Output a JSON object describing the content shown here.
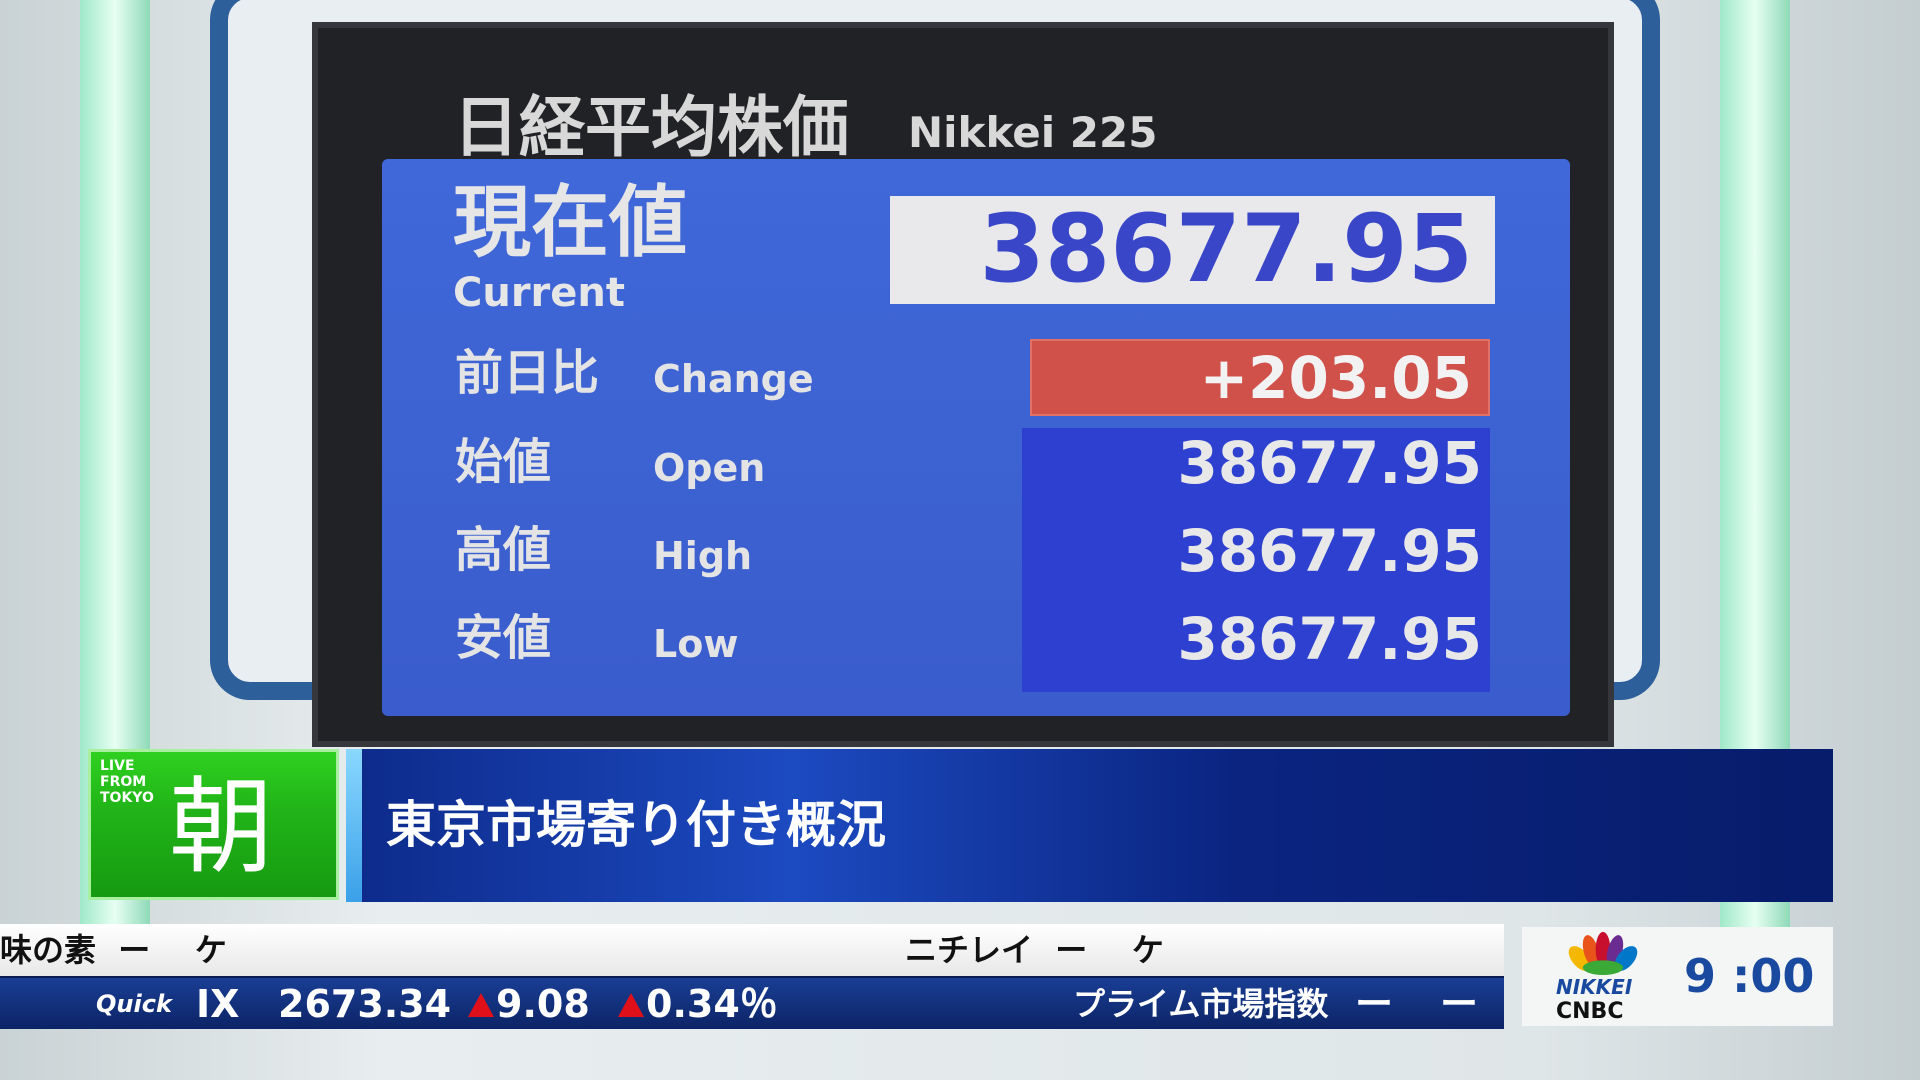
{
  "board": {
    "title_jp": "日経平均株価",
    "title_en": "Nikkei 225",
    "current": {
      "label_jp": "現在値",
      "label_en": "Current",
      "value": "38677.95"
    },
    "change": {
      "label_jp": "前日比",
      "label_en": "Change",
      "value": "+203.05",
      "color": "#d0504a"
    },
    "rows": [
      {
        "label_jp": "始値",
        "label_en": "Open",
        "value": "38677.95"
      },
      {
        "label_jp": "高値",
        "label_en": "High",
        "value": "38677.95"
      },
      {
        "label_jp": "安値",
        "label_en": "Low",
        "value": "38677.95"
      }
    ]
  },
  "lower_third": {
    "badge_small": [
      "LIVE",
      "FROM",
      "TOKYO"
    ],
    "badge_big": "朝",
    "headline": "東京市場寄り付き概況"
  },
  "ticker": {
    "top": [
      {
        "name": "味の素",
        "dash": "ー",
        "mark": "ケ"
      },
      {
        "name": "ニチレイ",
        "dash": "ー",
        "mark": "ケ"
      }
    ],
    "quick_label": "Quick",
    "index_name": "IX",
    "index_value": "2673.34",
    "change": "9.08",
    "change_pct": "0.34％",
    "next_name": "プライム市場指数",
    "next_val1": "ー",
    "next_val2": "ー"
  },
  "logo": {
    "line1": "NIKKEI",
    "line2": "CNBC"
  },
  "clock": "9 :00"
}
